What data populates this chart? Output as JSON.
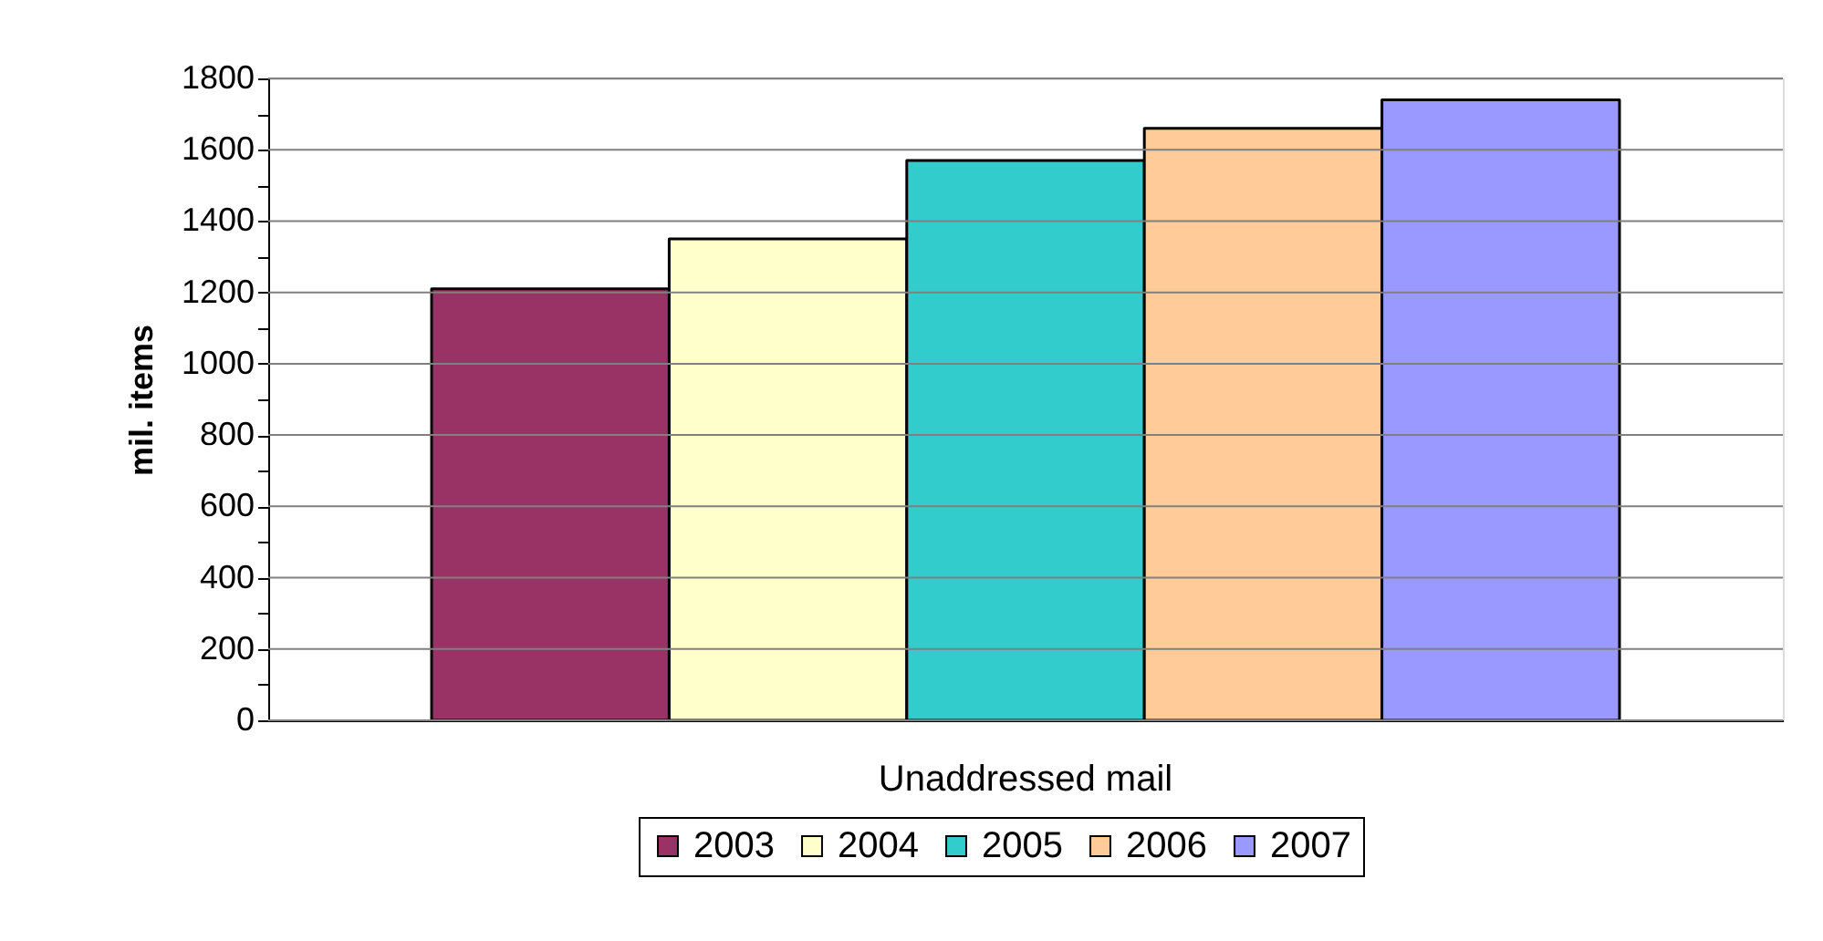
{
  "chart_data": {
    "type": "bar",
    "ylabel": "mil. items",
    "categories": [
      "Unaddressed mail"
    ],
    "series": [
      {
        "name": "2003",
        "color": "#993366",
        "values": [
          1210
        ]
      },
      {
        "name": "2004",
        "color": "#ffffcc",
        "values": [
          1350
        ]
      },
      {
        "name": "2005",
        "color": "#33cccc",
        "values": [
          1570
        ]
      },
      {
        "name": "2006",
        "color": "#ffcc99",
        "values": [
          1660
        ]
      },
      {
        "name": "2007",
        "color": "#9999ff",
        "values": [
          1740
        ]
      }
    ],
    "ylim": [
      0,
      1800
    ],
    "yticks": [
      0,
      {
        "value": 100,
        "label": null
      },
      200,
      {
        "value": 300,
        "label": null
      },
      400,
      {
        "value": 500,
        "label": null
      },
      600,
      {
        "value": 700,
        "label": null
      },
      800,
      {
        "value": 900,
        "label": null
      },
      1000,
      {
        "value": 1100,
        "label": null
      },
      1200,
      {
        "value": 1300,
        "label": null
      },
      1400,
      {
        "value": 1500,
        "label": null
      },
      1600,
      {
        "value": 1700,
        "label": null
      },
      1800
    ],
    "grid": "y",
    "legend": "bottom"
  }
}
